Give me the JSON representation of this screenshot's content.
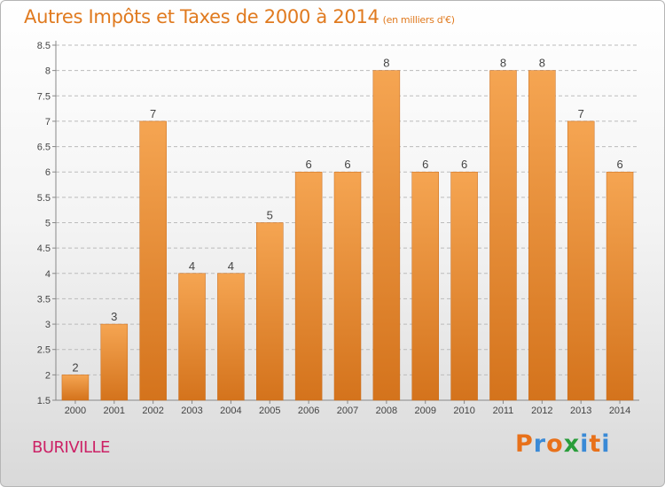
{
  "title": "Autres Impôts et Taxes de 2000 à 2014",
  "title_unit": "(en milliers d'€)",
  "commune": "BURIVILLE",
  "logo": {
    "text": "Proxiti",
    "letters": [
      "P",
      "r",
      "o",
      "x",
      "i",
      "t",
      "i"
    ],
    "colors": [
      "#e8711a",
      "#3a8ad6",
      "#e8711a",
      "#2a9d3b",
      "#3a8ad6",
      "#e8711a",
      "#3a8ad6"
    ]
  },
  "colors": {
    "bar_top": "#f5a552",
    "bar_bottom": "#d4731c",
    "grid": "#bbbbbb",
    "title": "#e07a1f"
  },
  "chart_data": {
    "type": "bar",
    "categories": [
      "2000",
      "2001",
      "2002",
      "2003",
      "2004",
      "2005",
      "2006",
      "2007",
      "2008",
      "2009",
      "2010",
      "2011",
      "2012",
      "2013",
      "2014"
    ],
    "values": [
      2,
      3,
      7,
      4,
      4,
      5,
      6,
      6,
      8,
      6,
      6,
      8,
      8,
      7,
      6
    ],
    "value_labels": [
      "2",
      "3",
      "7",
      "4",
      "4",
      "5",
      "6",
      "6",
      "8",
      "6",
      "6",
      "8",
      "8",
      "7",
      "6"
    ],
    "yticks": [
      "1.5",
      "2",
      "2.5",
      "3",
      "3.5",
      "4",
      "4.5",
      "5",
      "5.5",
      "6",
      "6.5",
      "7",
      "7.5",
      "8",
      "8.5"
    ],
    "ylim": [
      1.5,
      8.5
    ],
    "grid": true,
    "title": "Autres Impôts et Taxes de 2000 à 2014",
    "xlabel": "",
    "ylabel": ""
  }
}
